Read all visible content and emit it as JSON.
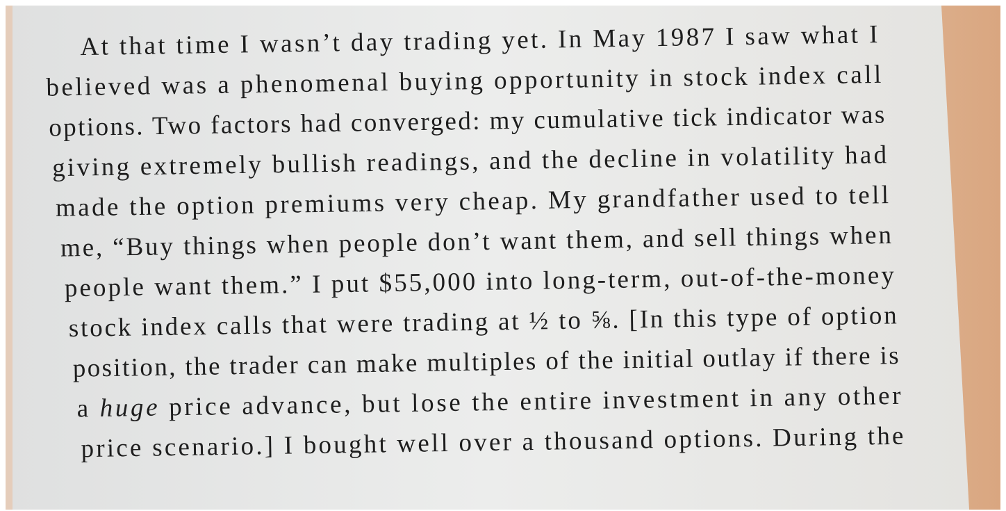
{
  "page": {
    "lines": [
      "At that time I wasn’t day trading yet. In May 1987 I saw what I",
      "believed was a phenomenal buying opportunity in stock index call",
      "options. Two factors had converged: my cumulative tick indicator was",
      "giving extremely bullish readings, and the decline in volatility had",
      "made the option premiums very cheap. My grandfather used to tell",
      "me, “Buy things when people don’t want them, and sell things when",
      "people want them.” I put $55,000 into long-term, out-of-the-money",
      "stock index calls that were trading at ½ to ⅝. [In this type of option",
      "position, the trader can make multiples of the initial outlay if there is",
      [
        "a ",
        "huge",
        " price advance, but lose the entire investment in any other"
      ],
      "price scenario.] I bought well over a thousand options. During the"
    ]
  }
}
